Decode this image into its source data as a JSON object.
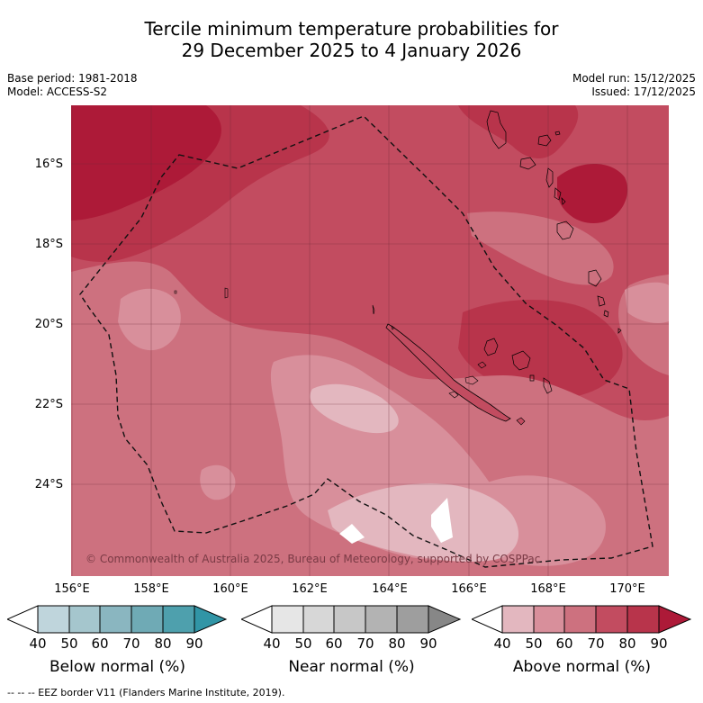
{
  "title": {
    "line1": "Tercile minimum temperature probabilities for",
    "line2": "29 December 2025 to 4 January 2026"
  },
  "meta": {
    "base_period": "Base period: 1981-2018",
    "model": "Model: ACCESS-S2",
    "model_run": "Model run: 15/12/2025",
    "issued": "Issued: 17/12/2025"
  },
  "axes": {
    "lat_labels": [
      "16°S",
      "18°S",
      "20°S",
      "22°S",
      "24°S"
    ],
    "lon_labels": [
      "156°E",
      "158°E",
      "160°E",
      "162°E",
      "164°E",
      "166°E",
      "168°E",
      "170°E"
    ]
  },
  "copyright": "© Commonwealth of Australia 2025, Bureau of Meteorology, supported by COSPPac",
  "colorbars": [
    {
      "label": "Below normal (%)",
      "ticks": [
        "40",
        "50",
        "60",
        "70",
        "80",
        "90"
      ],
      "colors": [
        "#bfd5dc",
        "#a5c6cd",
        "#8ab6c0",
        "#6faab5",
        "#4ea0ad",
        "#3195a6"
      ]
    },
    {
      "label": "Near normal (%)",
      "ticks": [
        "40",
        "50",
        "60",
        "70",
        "80",
        "90"
      ],
      "colors": [
        "#e6e6e6",
        "#d7d7d7",
        "#c7c7c7",
        "#b3b3b3",
        "#9e9e9e",
        "#878787"
      ]
    },
    {
      "label": "Above normal (%)",
      "ticks": [
        "40",
        "50",
        "60",
        "70",
        "80",
        "90"
      ],
      "colors": [
        "#e3b7bf",
        "#d88f9b",
        "#cd717f",
        "#c24c60",
        "#b8344b",
        "#ad1a38"
      ]
    }
  ],
  "legend_note": "--  --  -- EEZ border V11 (Flanders Marine Institute, 2019).",
  "map_colors": {
    "p40": "#e3b7bf",
    "p50": "#d88f9b",
    "p60": "#cd717f",
    "p70": "#c24c60",
    "p80": "#b8344b",
    "p90": "#ad1a38"
  }
}
